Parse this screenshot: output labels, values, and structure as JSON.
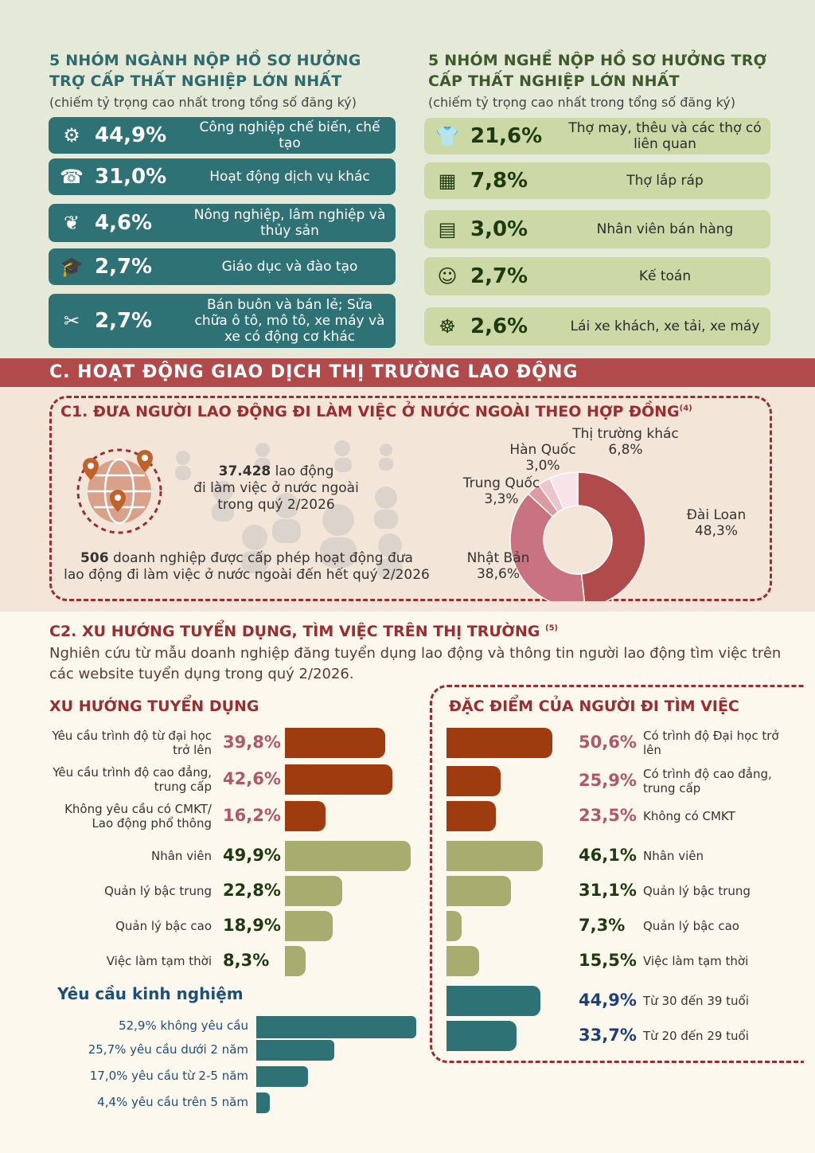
{
  "left_panel": {
    "title": "5 NHÓM NGÀNH NỘP HỒ SƠ HƯỞNG TRỢ CẤP THẤT NGHIỆP LỚN NHẤT",
    "subtitle": "(chiếm tỷ trọng cao nhất trong tổng số đăng ký)",
    "items": [
      {
        "icon": "gear-icon",
        "percent": "44,9%",
        "label": "Công nghiệp chế biến, chế tạo"
      },
      {
        "icon": "service-icon",
        "percent": "31,0%",
        "label": "Hoạt động dịch vụ khác"
      },
      {
        "icon": "plant-hand-icon",
        "percent": "4,6%",
        "label": "Nông nghiệp, lâm nghiệp và thủy sản"
      },
      {
        "icon": "graduation-icon",
        "percent": "2,7%",
        "label": "Giáo dục và đào tạo"
      },
      {
        "icon": "tools-icon",
        "percent": "2,7%",
        "label": "Bán buôn và bán lẻ; Sửa chữa ô tô, mô tô, xe máy và xe có động cơ khác"
      }
    ]
  },
  "right_panel": {
    "title": "5 NHÓM NGHỀ NỘP HỒ SƠ HƯỞNG TRỢ CẤP THẤT NGHIỆP LỚN NHẤT",
    "subtitle": "(chiếm tỷ trọng cao nhất trong tổng số đăng ký)",
    "items": [
      {
        "icon": "shirt-icon",
        "percent": "21,6%",
        "label": "Thợ may, thêu và các thợ có liên quan"
      },
      {
        "icon": "puzzle-icon",
        "percent": "7,8%",
        "label": "Thợ lắp ráp"
      },
      {
        "icon": "cashier-icon",
        "percent": "3,0%",
        "label": "Nhân viên bán hàng"
      },
      {
        "icon": "people-icon",
        "percent": "2,7%",
        "label": "Kế toán"
      },
      {
        "icon": "driver-icon",
        "percent": "2,6%",
        "label": "Lái xe khách, xe tải, xe máy"
      }
    ]
  },
  "section_c": {
    "title": "C. HOẠT ĐỘNG GIAO DỊCH THỊ TRƯỜNG LAO ĐỘNG"
  },
  "c1": {
    "title": "C1. ĐƯA NGƯỜI LAO ĐỘNG ĐI LÀM VIỆC Ở NƯỚC NGOÀI THEO HỢP ĐỒNG",
    "note": "(4)",
    "workers_number": "37.428",
    "workers_text_1": "lao động",
    "workers_text_2": "đi làm việc ở nước ngoài",
    "workers_text_3": "trong quý 2/2026",
    "enterprise_number": "506",
    "enterprise_text_1": "doanh nghiệp được cấp phép hoạt động đưa",
    "enterprise_text_2": "lao động đi làm việc ở nước ngoài đến hết quý 2/2026"
  },
  "chart_data": {
    "type": "pie",
    "donut": true,
    "slices": [
      {
        "name": "Đài Loan",
        "value": 48.3,
        "label": "48,3%",
        "color": "#b14a4a"
      },
      {
        "name": "Nhật Bản",
        "value": 38.6,
        "label": "38,6%",
        "color": "#c97280"
      },
      {
        "name": "Trung Quốc",
        "value": 3.3,
        "label": "3,3%",
        "color": "#dc9aa5"
      },
      {
        "name": "Hàn Quốc",
        "value": 3.0,
        "label": "3,0%",
        "color": "#ecc4cb"
      },
      {
        "name": "Thị trường khác",
        "value": 6.8,
        "label": "6,8%",
        "color": "#f7e3e8"
      }
    ]
  },
  "c2": {
    "title": "C2. XU HƯỚNG TUYỂN DỤNG, TÌM VIỆC TRÊN THỊ TRƯỜNG",
    "note": "(5)",
    "description": "Nghiên cứu từ mẫu doanh nghiệp đăng tuyển dụng lao động và thông tin người lao động tìm việc trên các website tuyển dụng trong quý 2/2026."
  },
  "recruit": {
    "title": "XU HƯỚNG TUYỂN DỤNG",
    "bars": [
      {
        "label": "Yêu cầu trình độ từ đại học trở lên",
        "value": 39.8,
        "text": "39,8%",
        "color": "#9e3b0f",
        "vcolor": "#b05866"
      },
      {
        "label": "Yêu cầu trình độ cao đẳng, trung cấp",
        "value": 42.6,
        "text": "42,6%",
        "color": "#9e3b0f",
        "vcolor": "#b05866"
      },
      {
        "label": "Không yêu cầu có CMKT/ Lao động phổ thông",
        "value": 16.2,
        "text": "16,2%",
        "color": "#9e3b0f",
        "vcolor": "#b05866"
      },
      {
        "label": "Nhân viên",
        "value": 49.9,
        "text": "49,9%",
        "color": "#a6ad6e",
        "vcolor": "#1d3a10"
      },
      {
        "label": "Quản lý bậc trung",
        "value": 22.8,
        "text": "22,8%",
        "color": "#a6ad6e",
        "vcolor": "#1d3a10"
      },
      {
        "label": "Quản lý bậc cao",
        "value": 18.9,
        "text": "18,9%",
        "color": "#a6ad6e",
        "vcolor": "#1d3a10"
      },
      {
        "label": "Việc làm tạm thời",
        "value": 8.3,
        "text": "8,3%",
        "color": "#a6ad6e",
        "vcolor": "#1d3a10"
      }
    ]
  },
  "experience": {
    "title": "Yêu cầu kinh nghiệm",
    "bars": [
      {
        "label": "52,9% không yêu cầu",
        "value": 52.9
      },
      {
        "label": "25,7% yêu cầu dưới 2 năm",
        "value": 25.7
      },
      {
        "label": "17,0% yêu cầu từ 2-5 năm",
        "value": 17.0
      },
      {
        "label": "4,4% yêu cầu trên 5 năm",
        "value": 4.4
      }
    ]
  },
  "seekers": {
    "title": "ĐẶC ĐIỂM CỦA NGƯỜI ĐI TÌM VIỆC",
    "bars": [
      {
        "label": "Có trình độ Đại học trở lên",
        "value": 50.6,
        "text": "50,6%",
        "color": "#9e3b0f",
        "vcolor": "#b05866"
      },
      {
        "label": "Có trình độ cao đẳng, trung cấp",
        "value": 25.9,
        "text": "25,9%",
        "color": "#9e3b0f",
        "vcolor": "#b05866"
      },
      {
        "label": "Không có CMKT",
        "value": 23.5,
        "text": "23,5%",
        "color": "#9e3b0f",
        "vcolor": "#b05866"
      },
      {
        "label": "Nhân viên",
        "value": 46.1,
        "text": "46,1%",
        "color": "#a6ad6e",
        "vcolor": "#1d3a10"
      },
      {
        "label": "Quản lý bậc trung",
        "value": 31.1,
        "text": "31,1%",
        "color": "#a6ad6e",
        "vcolor": "#1d3a10"
      },
      {
        "label": "Quản lý bậc cao",
        "value": 7.3,
        "text": "7,3%",
        "color": "#a6ad6e",
        "vcolor": "#1d3a10"
      },
      {
        "label": "Việc làm tạm thời",
        "value": 15.5,
        "text": "15,5%",
        "color": "#a6ad6e",
        "vcolor": "#1d3a10"
      },
      {
        "label": "Từ 30 đến 39 tuổi",
        "value": 44.9,
        "text": "44,9%",
        "color": "#2f7276",
        "vcolor": "#1f3f7a"
      },
      {
        "label": "Từ 20 đến 29 tuổi",
        "value": 33.7,
        "text": "33,7%",
        "color": "#2f7276",
        "vcolor": "#1f3f7a"
      }
    ]
  }
}
